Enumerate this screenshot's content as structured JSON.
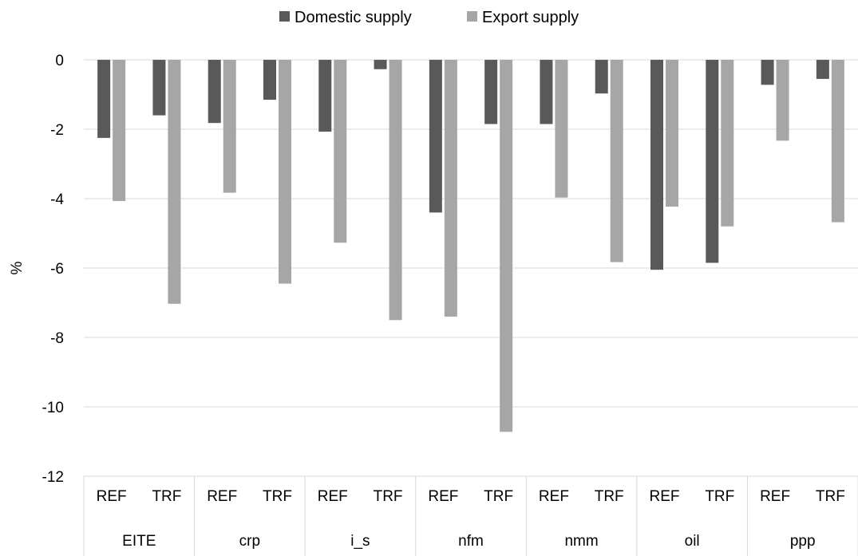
{
  "chart_data": {
    "type": "bar",
    "title": "",
    "ylabel": "%",
    "xlabel": "",
    "ylim": [
      -12,
      0
    ],
    "yticks": [
      0,
      -2,
      -4,
      -6,
      -8,
      -10,
      -12
    ],
    "ytick_labels": [
      "0",
      "-2",
      "-4",
      "-6",
      "-8",
      "-10",
      "-12"
    ],
    "grid": "horizontal",
    "legend_position": "top",
    "groups": [
      "EITE",
      "crp",
      "i_s",
      "nfm",
      "nmm",
      "oil",
      "ppp"
    ],
    "scenarios": [
      "REF",
      "TRF"
    ],
    "categories": [
      "EITE REF",
      "EITE TRF",
      "crp REF",
      "crp TRF",
      "i_s REF",
      "i_s TRF",
      "nfm REF",
      "nfm TRF",
      "nmm REF",
      "nmm TRF",
      "oil REF",
      "oil TRF",
      "ppp REF",
      "ppp TRF"
    ],
    "series": [
      {
        "name": "Domestic supply",
        "color": "#595959",
        "values": [
          -2.25,
          -1.6,
          -1.82,
          -1.15,
          -2.07,
          -0.27,
          -4.4,
          -1.85,
          -1.85,
          -0.97,
          -6.05,
          -5.85,
          -0.72,
          -0.55
        ]
      },
      {
        "name": "Export supply",
        "color": "#a6a6a6",
        "values": [
          -4.07,
          -7.03,
          -3.83,
          -6.45,
          -5.27,
          -7.5,
          -7.4,
          -10.72,
          -3.97,
          -5.83,
          -4.23,
          -4.8,
          -2.33,
          -4.68
        ]
      }
    ]
  }
}
